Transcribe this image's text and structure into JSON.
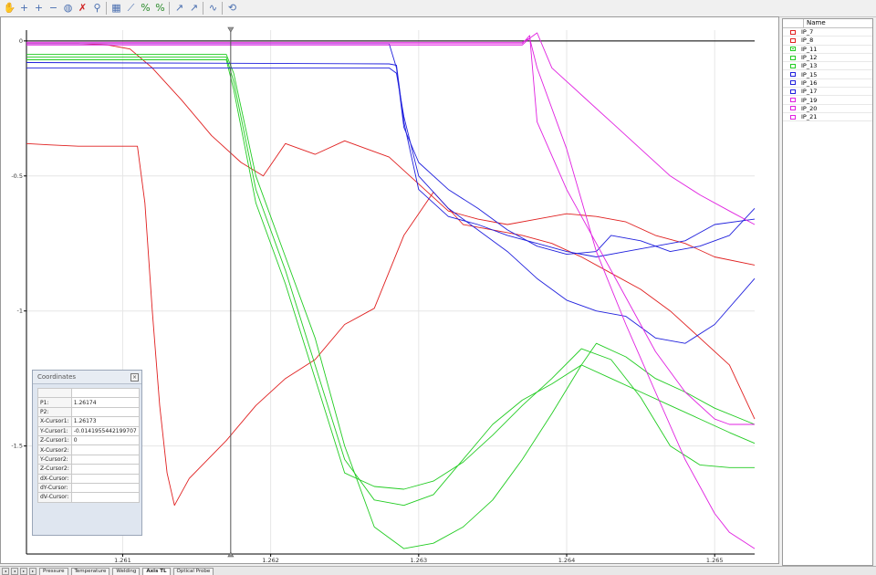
{
  "toolbar": {
    "icons": [
      "hand-icon",
      "add-icon",
      "zoom-in-icon",
      "zoom-out-icon",
      "lock-icon",
      "delete-icon",
      "pin-icon",
      "chart-options-icon",
      "line-style-icon",
      "percent-icon",
      "scale-icon",
      "cursor-icon",
      "cursor-options-icon",
      "wave-icon",
      "refresh-icon"
    ]
  },
  "legend": {
    "header": "Name",
    "items": [
      {
        "label": "IP_7",
        "color": "#e02020",
        "checked": false
      },
      {
        "label": "IP_8",
        "color": "#e02020",
        "checked": false
      },
      {
        "label": "IP_11",
        "color": "#22cc22",
        "checked": true
      },
      {
        "label": "IP_12",
        "color": "#22cc22",
        "checked": false
      },
      {
        "label": "IP_13",
        "color": "#22cc22",
        "checked": false
      },
      {
        "label": "IP_15",
        "color": "#2020dd",
        "checked": false
      },
      {
        "label": "IP_16",
        "color": "#2020dd",
        "checked": false
      },
      {
        "label": "IP_17",
        "color": "#2020dd",
        "checked": false
      },
      {
        "label": "IP_19",
        "color": "#e020e0",
        "checked": false
      },
      {
        "label": "IP_20",
        "color": "#e020e0",
        "checked": false
      },
      {
        "label": "IP_21",
        "color": "#e020e0",
        "checked": false
      }
    ]
  },
  "coordinates": {
    "title": "Coordinates",
    "rows": [
      {
        "k": "",
        "v": ""
      },
      {
        "k": "P1:",
        "v": "1.26174"
      },
      {
        "k": "P2:",
        "v": ""
      },
      {
        "k": "X-Cursor1:",
        "v": "1.26173"
      },
      {
        "k": "Y-Cursor1:",
        "v": "-0.0141955442199707"
      },
      {
        "k": "Z-Cursor1:",
        "v": "0"
      },
      {
        "k": "X-Cursor2:",
        "v": ""
      },
      {
        "k": "Y-Cursor2:",
        "v": ""
      },
      {
        "k": "Z-Cursor2:",
        "v": ""
      },
      {
        "k": "dX-Cursor:",
        "v": ""
      },
      {
        "k": "dY-Cursor:",
        "v": ""
      },
      {
        "k": "dV-Cursor:",
        "v": ""
      }
    ]
  },
  "bottom_tabs": {
    "tabs": [
      "Pressure",
      "Temperature",
      "Welding",
      "Axis TL",
      "Optical Probe"
    ],
    "active": 3
  },
  "chart_data": {
    "type": "line",
    "title": "",
    "xlabel": "",
    "ylabel": "",
    "xlim": [
      1.26035,
      1.26527
    ],
    "ylim": [
      -1.9,
      0.04
    ],
    "x_ticks": [
      1.261,
      1.262,
      1.263,
      1.264,
      1.265
    ],
    "y_ticks": [
      0,
      -0.5,
      -1,
      -1.5
    ],
    "x_tick_labels": [
      "1.261",
      "1.262",
      "1.263",
      "1.264",
      "1.265"
    ],
    "y_tick_labels": [
      "0",
      "-0.5",
      "-1",
      "-1.5"
    ],
    "grid": true,
    "cursor_x": 1.26173,
    "series": [
      {
        "name": "IP_7",
        "color": "#e02020",
        "x": [
          1.26035,
          1.2605,
          1.2607,
          1.26095,
          1.2611,
          1.26115,
          1.2612,
          1.26125,
          1.2613,
          1.26135,
          1.26145,
          1.2617,
          1.2619,
          1.2621,
          1.2623,
          1.2625,
          1.2627,
          1.2629,
          1.2631,
          1.2633,
          1.2635,
          1.2637,
          1.2639,
          1.2641,
          1.2643,
          1.2645,
          1.2647,
          1.2649,
          1.2651,
          1.26527
        ],
        "y": [
          -0.38,
          -0.385,
          -0.39,
          -0.39,
          -0.39,
          -0.6,
          -1.0,
          -1.35,
          -1.6,
          -1.72,
          -1.62,
          -1.48,
          -1.35,
          -1.25,
          -1.18,
          -1.05,
          -0.99,
          -0.72,
          -0.56,
          -0.68,
          -0.7,
          -0.72,
          -0.75,
          -0.8,
          -0.86,
          -0.92,
          -1.0,
          -1.1,
          -1.2,
          -1.4
        ]
      },
      {
        "name": "IP_8",
        "color": "#e02020",
        "x": [
          1.26035,
          1.2607,
          1.2609,
          1.26105,
          1.2612,
          1.2614,
          1.2616,
          1.2618,
          1.26195,
          1.2621,
          1.2623,
          1.2625,
          1.2628,
          1.263,
          1.2632,
          1.2634,
          1.2636,
          1.2638,
          1.264,
          1.2642,
          1.2644,
          1.2646,
          1.2648,
          1.265,
          1.26527
        ],
        "y": [
          -0.01,
          -0.01,
          -0.015,
          -0.03,
          -0.1,
          -0.22,
          -0.35,
          -0.45,
          -0.5,
          -0.38,
          -0.42,
          -0.37,
          -0.43,
          -0.53,
          -0.63,
          -0.66,
          -0.68,
          -0.66,
          -0.64,
          -0.65,
          -0.67,
          -0.72,
          -0.75,
          -0.8,
          -0.83
        ]
      },
      {
        "name": "IP_11",
        "color": "#22cc22",
        "x": [
          1.26035,
          1.2617,
          1.26175,
          1.2619,
          1.2621,
          1.2623,
          1.2625,
          1.2627,
          1.2629,
          1.2631,
          1.2633,
          1.2635,
          1.2637,
          1.2639,
          1.2641,
          1.2642,
          1.2644,
          1.2646,
          1.2648,
          1.265,
          1.26527
        ],
        "y": [
          -0.05,
          -0.05,
          -0.12,
          -0.5,
          -0.8,
          -1.1,
          -1.5,
          -1.8,
          -1.88,
          -1.86,
          -1.8,
          -1.7,
          -1.55,
          -1.38,
          -1.2,
          -1.12,
          -1.17,
          -1.25,
          -1.3,
          -1.36,
          -1.42
        ]
      },
      {
        "name": "IP_12",
        "color": "#22cc22",
        "x": [
          1.26035,
          1.2617,
          1.26175,
          1.2619,
          1.2621,
          1.2623,
          1.2625,
          1.2627,
          1.2629,
          1.2631,
          1.2633,
          1.2635,
          1.2637,
          1.2639,
          1.2641,
          1.2643,
          1.2645,
          1.2647,
          1.2649,
          1.2651,
          1.26527
        ],
        "y": [
          -0.06,
          -0.06,
          -0.15,
          -0.55,
          -0.85,
          -1.2,
          -1.55,
          -1.7,
          -1.72,
          -1.68,
          -1.55,
          -1.42,
          -1.33,
          -1.27,
          -1.2,
          -1.25,
          -1.3,
          -1.35,
          -1.4,
          -1.45,
          -1.49
        ]
      },
      {
        "name": "IP_13",
        "color": "#22cc22",
        "x": [
          1.26035,
          1.2617,
          1.26175,
          1.2619,
          1.2621,
          1.2623,
          1.2625,
          1.2627,
          1.2629,
          1.2631,
          1.2633,
          1.2635,
          1.2637,
          1.2639,
          1.2641,
          1.2643,
          1.2645,
          1.2647,
          1.2649,
          1.2651,
          1.26527
        ],
        "y": [
          -0.07,
          -0.07,
          -0.18,
          -0.6,
          -0.9,
          -1.25,
          -1.6,
          -1.65,
          -1.66,
          -1.63,
          -1.56,
          -1.46,
          -1.35,
          -1.25,
          -1.14,
          -1.18,
          -1.32,
          -1.5,
          -1.57,
          -1.58,
          -1.58
        ]
      },
      {
        "name": "IP_15",
        "color": "#2020dd",
        "x": [
          1.26035,
          1.2628,
          1.26285,
          1.2629,
          1.263,
          1.2632,
          1.2634,
          1.2636,
          1.2638,
          1.264,
          1.2642,
          1.2643,
          1.2645,
          1.2647,
          1.2649,
          1.2651,
          1.26527
        ],
        "y": [
          -0.01,
          -0.01,
          -0.1,
          -0.32,
          -0.45,
          -0.55,
          -0.62,
          -0.7,
          -0.76,
          -0.79,
          -0.78,
          -0.72,
          -0.74,
          -0.78,
          -0.76,
          -0.72,
          -0.62
        ]
      },
      {
        "name": "IP_16",
        "color": "#2020dd",
        "x": [
          1.26035,
          1.2628,
          1.26285,
          1.2629,
          1.263,
          1.2632,
          1.2634,
          1.2636,
          1.2638,
          1.264,
          1.2642,
          1.2644,
          1.2646,
          1.2648,
          1.265,
          1.26527
        ],
        "y": [
          -0.08,
          -0.085,
          -0.09,
          -0.3,
          -0.55,
          -0.65,
          -0.68,
          -0.72,
          -0.75,
          -0.78,
          -0.8,
          -0.78,
          -0.76,
          -0.74,
          -0.68,
          -0.66
        ]
      },
      {
        "name": "IP_17",
        "color": "#2020dd",
        "x": [
          1.26035,
          1.2628,
          1.26285,
          1.2629,
          1.263,
          1.2632,
          1.2634,
          1.2636,
          1.2638,
          1.264,
          1.2642,
          1.2644,
          1.2646,
          1.2648,
          1.265,
          1.26527
        ],
        "y": [
          -0.1,
          -0.1,
          -0.12,
          -0.28,
          -0.5,
          -0.62,
          -0.7,
          -0.78,
          -0.88,
          -0.96,
          -1.0,
          -1.02,
          -1.1,
          -1.12,
          -1.05,
          -0.88
        ]
      },
      {
        "name": "IP_19",
        "color": "#e020e0",
        "x": [
          1.26035,
          1.2637,
          1.26375,
          1.2638,
          1.264,
          1.2642,
          1.2644,
          1.2646,
          1.2648,
          1.265,
          1.2651,
          1.26527
        ],
        "y": [
          -0.01,
          -0.01,
          0.02,
          -0.3,
          -0.55,
          -0.75,
          -0.95,
          -1.15,
          -1.3,
          -1.4,
          -1.42,
          -1.42
        ]
      },
      {
        "name": "IP_20",
        "color": "#e020e0",
        "x": [
          1.26035,
          1.2637,
          1.26375,
          1.2638,
          1.264,
          1.2642,
          1.2644,
          1.2646,
          1.2648,
          1.265,
          1.2651,
          1.26527
        ],
        "y": [
          -0.015,
          -0.015,
          0.01,
          -0.1,
          -0.4,
          -0.78,
          -1.05,
          -1.3,
          -1.55,
          -1.75,
          -1.82,
          -1.88
        ]
      },
      {
        "name": "IP_21",
        "color": "#e020e0",
        "x": [
          1.26035,
          1.2637,
          1.26375,
          1.2638,
          1.2639,
          1.2641,
          1.2643,
          1.2645,
          1.2647,
          1.2649,
          1.2651,
          1.26527
        ],
        "y": [
          -0.005,
          -0.005,
          0.01,
          0.03,
          -0.1,
          -0.2,
          -0.3,
          -0.4,
          -0.5,
          -0.57,
          -0.63,
          -0.68
        ]
      }
    ]
  }
}
